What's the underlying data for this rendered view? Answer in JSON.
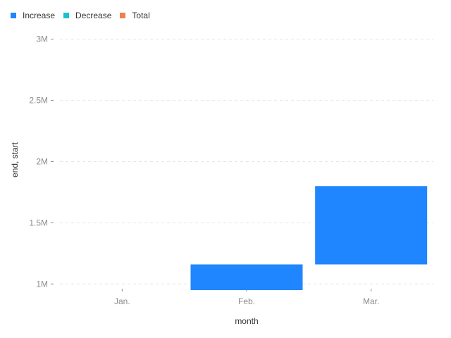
{
  "chart_data": {
    "type": "bar",
    "subtype": "waterfall",
    "categories": [
      "Jan.",
      "Feb.",
      "Mar."
    ],
    "series": [
      {
        "name": "Increase",
        "color": "#1f86ff",
        "points": [
          {
            "x": "Jan.",
            "start": null,
            "end": null
          },
          {
            "x": "Feb.",
            "start": 900000,
            "end": 1160000
          },
          {
            "x": "Mar.",
            "start": 1160000,
            "end": 1800000
          }
        ]
      },
      {
        "name": "Decrease",
        "color": "#17c2cc",
        "points": []
      },
      {
        "name": "Total",
        "color": "#f1804b",
        "points": []
      }
    ],
    "xlabel": "month",
    "ylabel": "end, start",
    "ylim": [
      950000,
      3050000
    ],
    "yticks": [
      1000000,
      1500000,
      2000000,
      2500000,
      3000000
    ],
    "ytick_labels": [
      "1M",
      "1.5M",
      "2M",
      "2.5M",
      "3M"
    ],
    "grid": "horizontal-dashed",
    "legend_position": "top-left"
  }
}
